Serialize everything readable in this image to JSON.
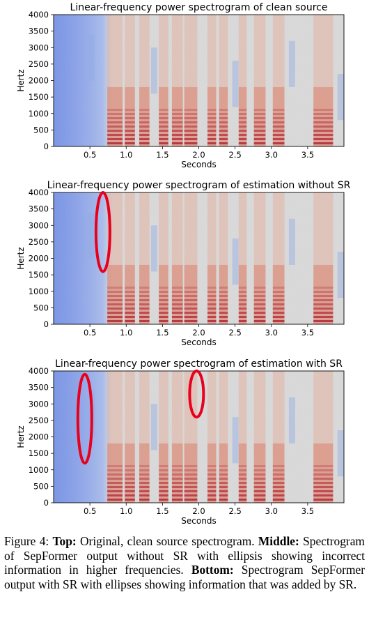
{
  "figure": {
    "panels": [
      {
        "title": "Linear-frequency power spectrogram of clean source",
        "ylabel": "Hertz",
        "xlabel": "Seconds",
        "y_ticks": [
          "0",
          "500",
          "1000",
          "1500",
          "2000",
          "2500",
          "3000",
          "3500",
          "4000"
        ],
        "x_ticks": [
          "0.5",
          "1.0",
          "1.5",
          "2.0",
          "2.5",
          "3.0",
          "3.5"
        ],
        "ellipses": []
      },
      {
        "title": "Linear-frequency power spectrogram of estimation without SR",
        "ylabel": "Hertz",
        "xlabel": "Seconds",
        "y_ticks": [
          "0",
          "500",
          "1000",
          "1500",
          "2000",
          "2500",
          "3000",
          "3500",
          "4000"
        ],
        "x_ticks": [
          "0.5",
          "1.0",
          "1.5",
          "2.0",
          "2.5",
          "3.0",
          "3.5"
        ],
        "ellipses": [
          {
            "center_seconds": 0.68,
            "low_hz": 1600,
            "high_hz": 4000
          }
        ]
      },
      {
        "title": "Linear-frequency power spectrogram of estimation with SR",
        "ylabel": "Hertz",
        "xlabel": "Seconds",
        "y_ticks": [
          "0",
          "500",
          "1000",
          "1500",
          "2000",
          "2500",
          "3000",
          "3500",
          "4000"
        ],
        "x_ticks": [
          "0.5",
          "1.0",
          "1.5",
          "2.0",
          "2.5",
          "3.0",
          "3.5"
        ],
        "ellipses": [
          {
            "center_seconds": 0.43,
            "low_hz": 1200,
            "high_hz": 3900
          },
          {
            "center_seconds": 1.97,
            "low_hz": 2600,
            "high_hz": 4000
          }
        ]
      }
    ],
    "colors": {
      "cold": "#4a6fe3",
      "neutral": "#dcdcdc",
      "hot": "#b2182b",
      "ellipse": "#e8001c"
    }
  },
  "caption": {
    "label": "Figure 4:",
    "top_head": "Top:",
    "top_text": "Original, clean source spectrogram.",
    "middle_head": "Middle:",
    "middle_text": "Spectrogram of SepFormer output without SR with ellipsis showing incorrect information in higher frequencies.",
    "bottom_head": "Bottom:",
    "bottom_text": "Spectrogram SepFormer output with SR with ellipses showing information that was added by SR."
  }
}
